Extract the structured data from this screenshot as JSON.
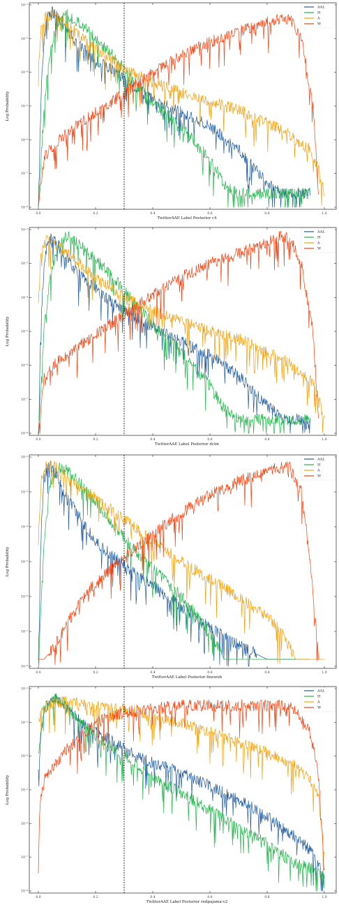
{
  "chart_data": [
    {
      "type": "line",
      "xlabel": "TwitterAAE Label Posterior c4",
      "ylabel": "Log Probability",
      "xlim": [
        0.0,
        1.0
      ],
      "ylim_log10": [
        -8,
        -2
      ],
      "yscale": "log",
      "xticks": [
        "0.0",
        "0.2",
        "0.4",
        "0.6",
        "0.8",
        "1.0"
      ],
      "yticks": [
        "10⁻²",
        "10⁻³",
        "10⁻⁴",
        "10⁻⁵",
        "10⁻⁶",
        "10⁻⁷",
        "10⁻⁸"
      ],
      "threshold_x": 0.3,
      "legend_position": "top-right",
      "series": [
        {
          "name": "AAL",
          "color": "#1f5a9c",
          "x": [
            0.0,
            0.01,
            0.02,
            0.03,
            0.05,
            0.08,
            0.12,
            0.18,
            0.25,
            0.3,
            0.4,
            0.5,
            0.6,
            0.7,
            0.8,
            0.85,
            0.9,
            0.95
          ],
          "log10": [
            -8.0,
            -4.5,
            -3.0,
            -2.4,
            -2.2,
            -2.5,
            -3.0,
            -3.5,
            -3.9,
            -4.2,
            -4.8,
            -5.2,
            -5.6,
            -6.3,
            -7.3,
            -7.6,
            -7.6,
            -7.6
          ]
        },
        {
          "name": "H",
          "color": "#21b24a",
          "x": [
            0.0,
            0.02,
            0.04,
            0.06,
            0.1,
            0.15,
            0.2,
            0.25,
            0.3,
            0.35,
            0.4,
            0.5,
            0.6,
            0.65,
            0.7,
            0.8,
            0.9,
            0.95
          ],
          "log10": [
            -8.0,
            -5.0,
            -3.5,
            -2.6,
            -2.3,
            -2.6,
            -3.0,
            -3.4,
            -3.9,
            -4.4,
            -4.9,
            -5.6,
            -6.6,
            -7.3,
            -7.6,
            -7.6,
            -7.6,
            -7.6
          ]
        },
        {
          "name": "A",
          "color": "#f0a10a",
          "x": [
            0.0,
            0.01,
            0.03,
            0.06,
            0.1,
            0.2,
            0.3,
            0.4,
            0.5,
            0.6,
            0.7,
            0.8,
            0.85,
            0.9,
            0.95,
            0.98,
            1.0
          ],
          "log10": [
            -4.0,
            -2.6,
            -2.3,
            -2.3,
            -2.6,
            -3.3,
            -3.9,
            -4.3,
            -4.6,
            -4.9,
            -5.1,
            -5.5,
            -5.7,
            -6.0,
            -6.3,
            -6.8,
            -7.6
          ]
        },
        {
          "name": "W",
          "color": "#f04310",
          "x": [
            0.0,
            0.02,
            0.05,
            0.1,
            0.15,
            0.2,
            0.25,
            0.3,
            0.4,
            0.5,
            0.6,
            0.7,
            0.8,
            0.85,
            0.88,
            0.92,
            0.96,
            0.98
          ],
          "log10": [
            -8.0,
            -6.5,
            -6.2,
            -5.8,
            -5.5,
            -5.2,
            -4.9,
            -4.6,
            -4.0,
            -3.5,
            -3.1,
            -2.8,
            -2.5,
            -2.4,
            -2.4,
            -3.0,
            -5.0,
            -7.6
          ]
        }
      ]
    },
    {
      "type": "line",
      "xlabel": "TwitterAAE Label Posterior dclm",
      "ylabel": "Log Probability",
      "xlim": [
        0.0,
        1.0
      ],
      "ylim_log10": [
        -8,
        -2
      ],
      "yscale": "log",
      "xticks": [
        "0.0",
        "0.2",
        "0.4",
        "0.6",
        "0.8",
        "1.0"
      ],
      "yticks": [
        "10⁻²",
        "10⁻³",
        "10⁻⁴",
        "10⁻⁵",
        "10⁻⁶",
        "10⁻⁷",
        "10⁻⁸"
      ],
      "threshold_x": 0.3,
      "legend_position": "top-right",
      "series": [
        {
          "name": "AAL",
          "color": "#1f5a9c",
          "x": [
            0.0,
            0.01,
            0.02,
            0.03,
            0.05,
            0.08,
            0.12,
            0.18,
            0.25,
            0.3,
            0.4,
            0.5,
            0.6,
            0.7,
            0.8,
            0.86,
            0.9,
            0.95
          ],
          "log10": [
            -8.0,
            -4.5,
            -3.0,
            -2.4,
            -2.2,
            -2.6,
            -3.1,
            -3.6,
            -4.1,
            -4.4,
            -4.9,
            -5.3,
            -5.7,
            -6.3,
            -7.2,
            -7.6,
            -7.6,
            -7.6
          ]
        },
        {
          "name": "H",
          "color": "#21b24a",
          "x": [
            0.0,
            0.02,
            0.04,
            0.07,
            0.1,
            0.15,
            0.2,
            0.25,
            0.3,
            0.35,
            0.4,
            0.5,
            0.6,
            0.65,
            0.7,
            0.8,
            0.9,
            0.95
          ],
          "log10": [
            -8.0,
            -5.0,
            -3.3,
            -2.5,
            -2.2,
            -2.5,
            -2.9,
            -3.3,
            -3.8,
            -4.3,
            -4.8,
            -5.6,
            -6.6,
            -7.3,
            -7.6,
            -7.6,
            -7.6,
            -7.6
          ]
        },
        {
          "name": "A",
          "color": "#f0a10a",
          "x": [
            0.0,
            0.01,
            0.03,
            0.06,
            0.1,
            0.2,
            0.3,
            0.4,
            0.5,
            0.6,
            0.7,
            0.8,
            0.85,
            0.9,
            0.95,
            0.98,
            1.0
          ],
          "log10": [
            -4.0,
            -2.6,
            -2.3,
            -2.4,
            -2.7,
            -3.4,
            -4.0,
            -4.4,
            -4.7,
            -5.0,
            -5.2,
            -5.6,
            -5.8,
            -6.1,
            -6.4,
            -6.9,
            -7.6
          ]
        },
        {
          "name": "W",
          "color": "#f04310",
          "x": [
            0.0,
            0.02,
            0.05,
            0.1,
            0.15,
            0.2,
            0.25,
            0.3,
            0.4,
            0.5,
            0.6,
            0.7,
            0.8,
            0.85,
            0.88,
            0.92,
            0.96,
            0.98
          ],
          "log10": [
            -8.0,
            -6.4,
            -6.0,
            -5.7,
            -5.4,
            -5.1,
            -4.8,
            -4.5,
            -3.9,
            -3.4,
            -3.0,
            -2.7,
            -2.4,
            -2.2,
            -2.3,
            -3.0,
            -5.0,
            -7.6
          ]
        }
      ]
    },
    {
      "type": "line",
      "xlabel": "TwitterAAE Label Posterior fineweb",
      "ylabel": "Log Probability",
      "xlim": [
        0.0,
        1.0
      ],
      "ylim_log10": [
        -8,
        -2
      ],
      "yscale": "log",
      "xticks": [
        "0.0",
        "0.2",
        "0.4",
        "0.6",
        "0.8",
        "1.0"
      ],
      "yticks": [
        "10⁻²",
        "10⁻³",
        "10⁻⁴",
        "10⁻⁵",
        "10⁻⁶",
        "10⁻⁷",
        "10⁻⁸"
      ],
      "threshold_x": 0.3,
      "legend_position": "top-right",
      "series": [
        {
          "name": "AAL",
          "color": "#1f5a9c",
          "x": [
            0.0,
            0.01,
            0.02,
            0.04,
            0.06,
            0.1,
            0.15,
            0.2,
            0.25,
            0.3,
            0.4,
            0.5,
            0.6,
            0.7,
            0.8,
            0.85,
            0.9,
            0.95
          ],
          "log10": [
            -7.8,
            -4.0,
            -2.6,
            -2.2,
            -2.5,
            -3.2,
            -3.8,
            -4.4,
            -4.8,
            -5.1,
            -5.7,
            -6.3,
            -6.9,
            -7.4,
            -7.8,
            -7.8,
            -7.8,
            -7.8
          ]
        },
        {
          "name": "H",
          "color": "#21b24a",
          "x": [
            0.0,
            0.02,
            0.04,
            0.07,
            0.1,
            0.15,
            0.2,
            0.25,
            0.3,
            0.35,
            0.4,
            0.5,
            0.6,
            0.65,
            0.7,
            0.8,
            0.9,
            0.95
          ],
          "log10": [
            -7.8,
            -4.5,
            -2.8,
            -2.3,
            -2.4,
            -2.8,
            -3.3,
            -3.8,
            -4.3,
            -4.8,
            -5.2,
            -6.0,
            -7.0,
            -7.8,
            -7.8,
            -7.8,
            -7.8,
            -7.8
          ]
        },
        {
          "name": "A",
          "color": "#f0a10a",
          "x": [
            0.0,
            0.01,
            0.03,
            0.06,
            0.1,
            0.2,
            0.3,
            0.4,
            0.5,
            0.6,
            0.7,
            0.8,
            0.85,
            0.9,
            0.95,
            0.98,
            1.0
          ],
          "log10": [
            -4.5,
            -2.6,
            -2.2,
            -2.3,
            -2.6,
            -3.2,
            -3.8,
            -4.4,
            -5.0,
            -5.5,
            -6.0,
            -6.6,
            -7.0,
            -7.8,
            -7.8,
            -7.8,
            -7.8
          ]
        },
        {
          "name": "W",
          "color": "#f04310",
          "x": [
            0.0,
            0.02,
            0.05,
            0.1,
            0.15,
            0.2,
            0.25,
            0.3,
            0.4,
            0.5,
            0.6,
            0.7,
            0.8,
            0.85,
            0.88,
            0.92,
            0.95,
            0.98
          ],
          "log10": [
            -7.8,
            -7.8,
            -7.5,
            -6.8,
            -6.1,
            -5.6,
            -5.2,
            -4.9,
            -4.2,
            -3.6,
            -3.1,
            -2.7,
            -2.4,
            -2.3,
            -2.3,
            -3.0,
            -5.0,
            -7.8
          ]
        }
      ]
    },
    {
      "type": "line",
      "xlabel": "TwitterAAE Label Posterior redpajama-v2",
      "ylabel": "Log Probability",
      "xlim": [
        0.0,
        1.0
      ],
      "ylim_log10": [
        -8,
        -2
      ],
      "yscale": "log",
      "xticks": [
        "0.0",
        "0.2",
        "0.4",
        "0.6",
        "0.8",
        "1.0"
      ],
      "yticks": [
        "10⁻²",
        "10⁻³",
        "10⁻⁴",
        "10⁻⁵",
        "10⁻⁶",
        "10⁻⁷",
        "10⁻⁸"
      ],
      "threshold_x": 0.3,
      "legend_position": "top-right",
      "series": [
        {
          "name": "AAL",
          "color": "#1f5a9c",
          "x": [
            0.0,
            0.01,
            0.02,
            0.04,
            0.06,
            0.1,
            0.15,
            0.2,
            0.25,
            0.3,
            0.4,
            0.5,
            0.6,
            0.7,
            0.8,
            0.9,
            0.95,
            1.0
          ],
          "log10": [
            -4.5,
            -3.2,
            -2.7,
            -2.4,
            -2.3,
            -2.6,
            -3.0,
            -3.3,
            -3.5,
            -3.8,
            -4.2,
            -4.5,
            -4.9,
            -5.3,
            -5.8,
            -6.4,
            -6.8,
            -7.6
          ]
        },
        {
          "name": "H",
          "color": "#21b24a",
          "x": [
            0.0,
            0.01,
            0.02,
            0.04,
            0.06,
            0.1,
            0.15,
            0.2,
            0.25,
            0.3,
            0.4,
            0.5,
            0.6,
            0.7,
            0.8,
            0.9,
            0.95,
            1.0
          ],
          "log10": [
            -4.0,
            -3.2,
            -2.6,
            -2.4,
            -2.3,
            -2.5,
            -3.0,
            -3.4,
            -3.7,
            -4.0,
            -4.6,
            -5.1,
            -5.6,
            -6.1,
            -6.6,
            -7.2,
            -7.3,
            -7.6
          ]
        },
        {
          "name": "A",
          "color": "#f0a10a",
          "x": [
            0.0,
            0.01,
            0.03,
            0.06,
            0.1,
            0.2,
            0.3,
            0.4,
            0.5,
            0.6,
            0.7,
            0.8,
            0.85,
            0.9,
            0.95,
            0.98,
            1.0
          ],
          "log10": [
            -3.0,
            -2.7,
            -2.5,
            -2.4,
            -2.4,
            -2.5,
            -2.6,
            -2.8,
            -3.0,
            -3.3,
            -3.6,
            -3.9,
            -4.1,
            -4.3,
            -4.7,
            -5.2,
            -7.0
          ]
        },
        {
          "name": "W",
          "color": "#f04310",
          "x": [
            0.0,
            0.005,
            0.02,
            0.05,
            0.1,
            0.15,
            0.2,
            0.3,
            0.4,
            0.5,
            0.6,
            0.7,
            0.8,
            0.85,
            0.9,
            0.95,
            0.98,
            1.0
          ],
          "log10": [
            -7.6,
            -5.5,
            -4.7,
            -4.3,
            -3.8,
            -3.4,
            -3.0,
            -2.7,
            -2.6,
            -2.5,
            -2.5,
            -2.5,
            -2.5,
            -2.5,
            -2.6,
            -3.3,
            -4.5,
            -7.5
          ]
        }
      ]
    }
  ]
}
